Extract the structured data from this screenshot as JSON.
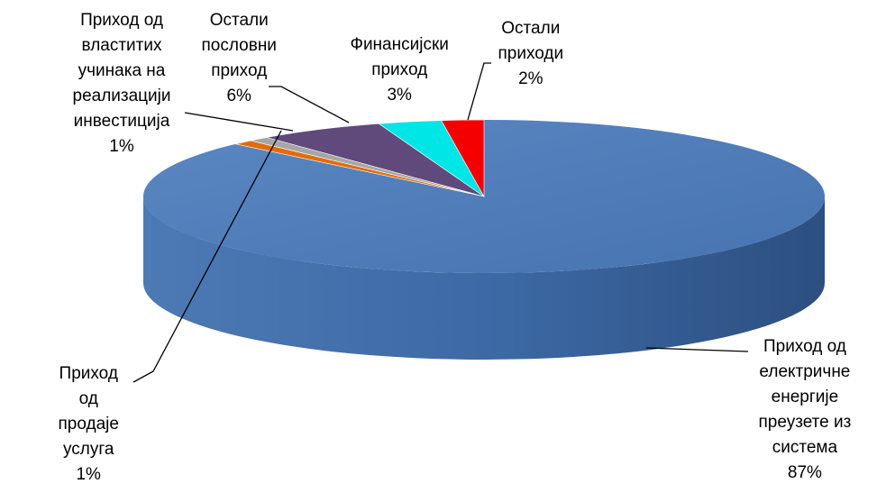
{
  "chart_data": {
    "type": "pie",
    "variant": "3d",
    "title": "",
    "categories": [
      "Приход од електричне енергије преузете из система",
      "Приход од продаје услуга",
      "Приход од властитих учинака на реализацији инвестиција",
      "Остали пословни приход",
      "Финансијски приход",
      "Остали приходи"
    ],
    "values": [
      87,
      1,
      1,
      6,
      3,
      2
    ],
    "colors": [
      "#4472C4",
      "#E36C0A",
      "#A6A6A6",
      "#5F4A7B",
      "#00E5E5",
      "#F40000"
    ],
    "labels": [
      {
        "lines": [
          "Приход од",
          "електричне",
          "енергије",
          "преузете из",
          "система"
        ],
        "pct": "87%"
      },
      {
        "lines": [
          "Приход",
          "од",
          "продаје",
          "услуга"
        ],
        "pct": "1%"
      },
      {
        "lines": [
          "Приход од",
          "властитих",
          "учинака на",
          "реализацији",
          "инвестиција"
        ],
        "pct": "1%"
      },
      {
        "lines": [
          "Остали",
          "пословни",
          "приход"
        ],
        "pct": "6%"
      },
      {
        "lines": [
          "Финансијски",
          "приход"
        ],
        "pct": "3%"
      },
      {
        "lines": [
          "Остали",
          "приходи"
        ],
        "pct": "2%"
      }
    ],
    "legend": "none",
    "grid": false
  }
}
